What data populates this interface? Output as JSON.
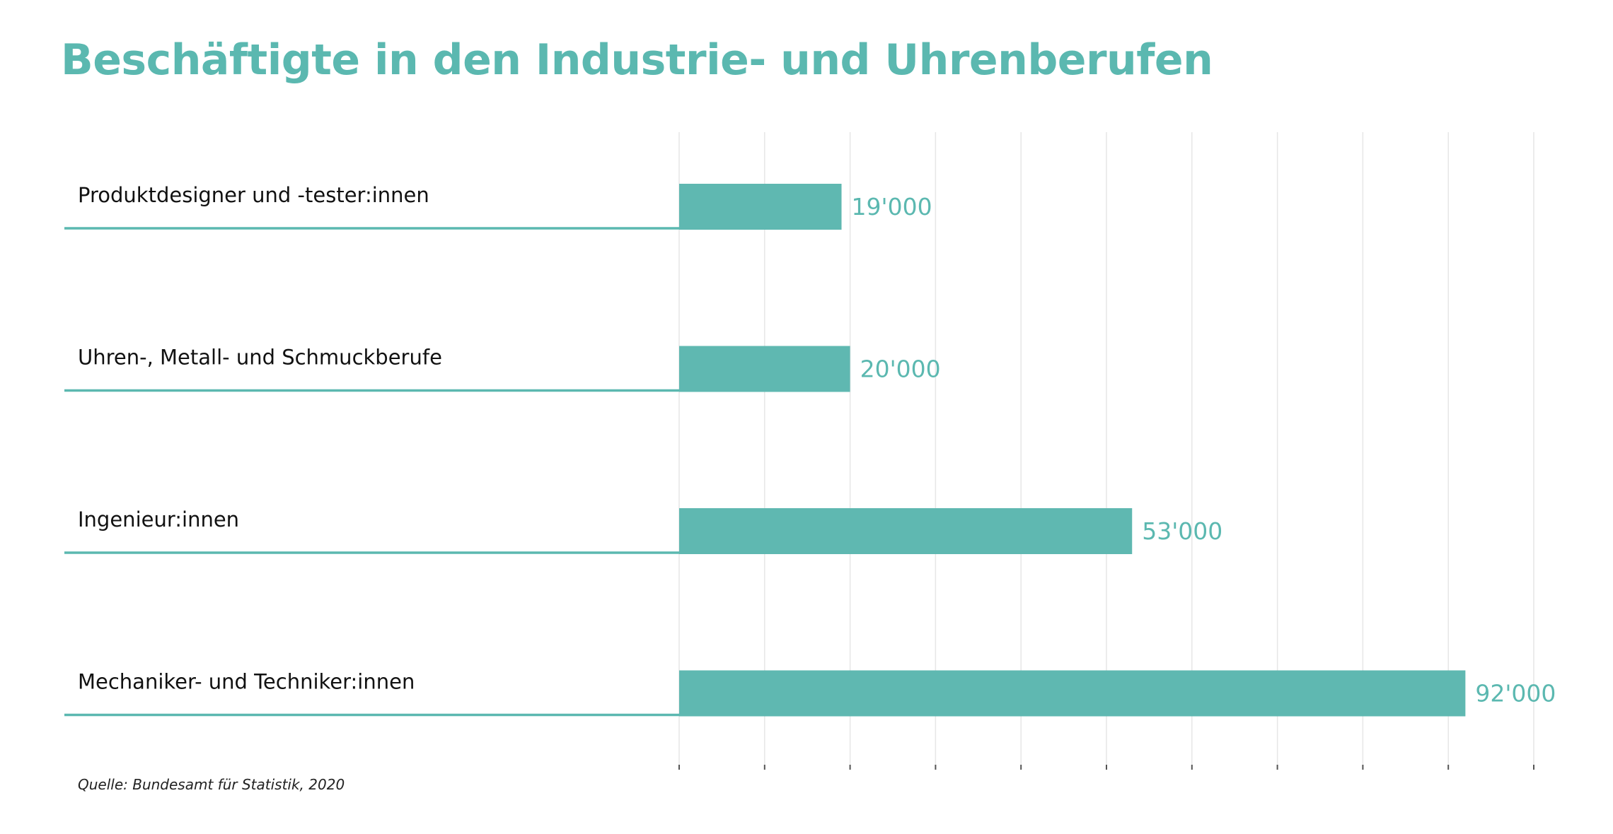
{
  "title": "Beschäftigte in den Industrie- und Uhrenberufen",
  "source": "Quelle: Bundesamt für Statistik, 2020",
  "colors": {
    "bar": "#5fb8b1",
    "accent": "#5bb8b0",
    "grid": "#e6e6e6"
  },
  "chart_data": {
    "type": "bar",
    "orientation": "horizontal",
    "title": "Beschäftigte in den Industrie- und Uhrenberufen",
    "categories": [
      "Produktdesigner und -tester:innen",
      "Uhren-, Metall- und Schmuckberufe",
      "Ingenieur:innen",
      "Mechaniker- und Techniker:innen"
    ],
    "values": [
      19000,
      20000,
      53000,
      92000
    ],
    "value_labels": [
      "19'000",
      "20'000",
      "53'000",
      "92'000"
    ],
    "xlim": [
      0,
      100000
    ],
    "grid_step": 10000,
    "grid": true,
    "xlabel": "",
    "ylabel": ""
  }
}
